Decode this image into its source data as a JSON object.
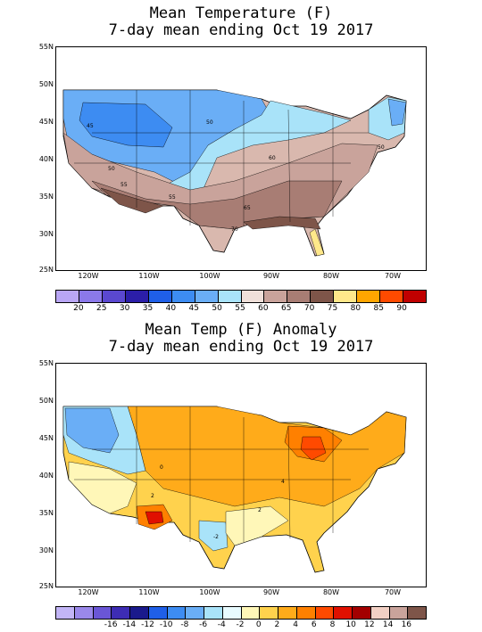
{
  "map1": {
    "title_line1": "Mean Temperature (F)",
    "title_line2": "7-day mean ending Oct 19 2017",
    "lat_labels": [
      "55N",
      "50N",
      "45N",
      "40N",
      "35N",
      "30N",
      "25N"
    ],
    "lon_labels": [
      "120W",
      "110W",
      "100W",
      "90W",
      "80W",
      "70W"
    ],
    "contour_labels": [
      "45",
      "50",
      "50",
      "60",
      "50",
      "55",
      "55",
      "65",
      "70",
      "60",
      "50"
    ],
    "legend": {
      "colors": [
        "#b9a6f5",
        "#8b79ea",
        "#5a48d0",
        "#2b1ea8",
        "#1f5fe8",
        "#3d8cf2",
        "#6aaef6",
        "#a9e3f9",
        "#f0e0da",
        "#c9a39b",
        "#a87d74",
        "#7e5549",
        "#ffe88a",
        "#ffa600",
        "#ff4a00",
        "#c00000"
      ],
      "labels": [
        "20",
        "25",
        "30",
        "35",
        "40",
        "45",
        "50",
        "55",
        "60",
        "65",
        "70",
        "75",
        "80",
        "85",
        "90"
      ]
    }
  },
  "map2": {
    "title_line1": "Mean Temp (F) Anomaly",
    "title_line2": "7-day mean ending Oct 19 2017",
    "lat_labels": [
      "55N",
      "50N",
      "45N",
      "40N",
      "35N",
      "30N",
      "25N"
    ],
    "lon_labels": [
      "120W",
      "110W",
      "100W",
      "90W",
      "80W",
      "70W"
    ],
    "contour_labels": [
      "0",
      "2",
      "4",
      "2",
      "-2",
      "6",
      "2",
      "4"
    ],
    "legend": {
      "colors": [
        "#c2b5f6",
        "#9a88ea",
        "#6a56d6",
        "#3d2cb4",
        "#1a1a8c",
        "#1f5fe8",
        "#3d8cf2",
        "#6aaef6",
        "#a9e3f9",
        "#e8fbff",
        "#fff7b8",
        "#ffd24d",
        "#ffab1a",
        "#ff8000",
        "#ff4a00",
        "#e01000",
        "#a30000",
        "#f2d0c4",
        "#c9a39b",
        "#7e5549"
      ],
      "labels": [
        "-16",
        "-14",
        "-12",
        "-10",
        "-8",
        "-6",
        "-4",
        "-2",
        "0",
        "2",
        "4",
        "6",
        "8",
        "10",
        "12",
        "14",
        "16"
      ]
    }
  }
}
